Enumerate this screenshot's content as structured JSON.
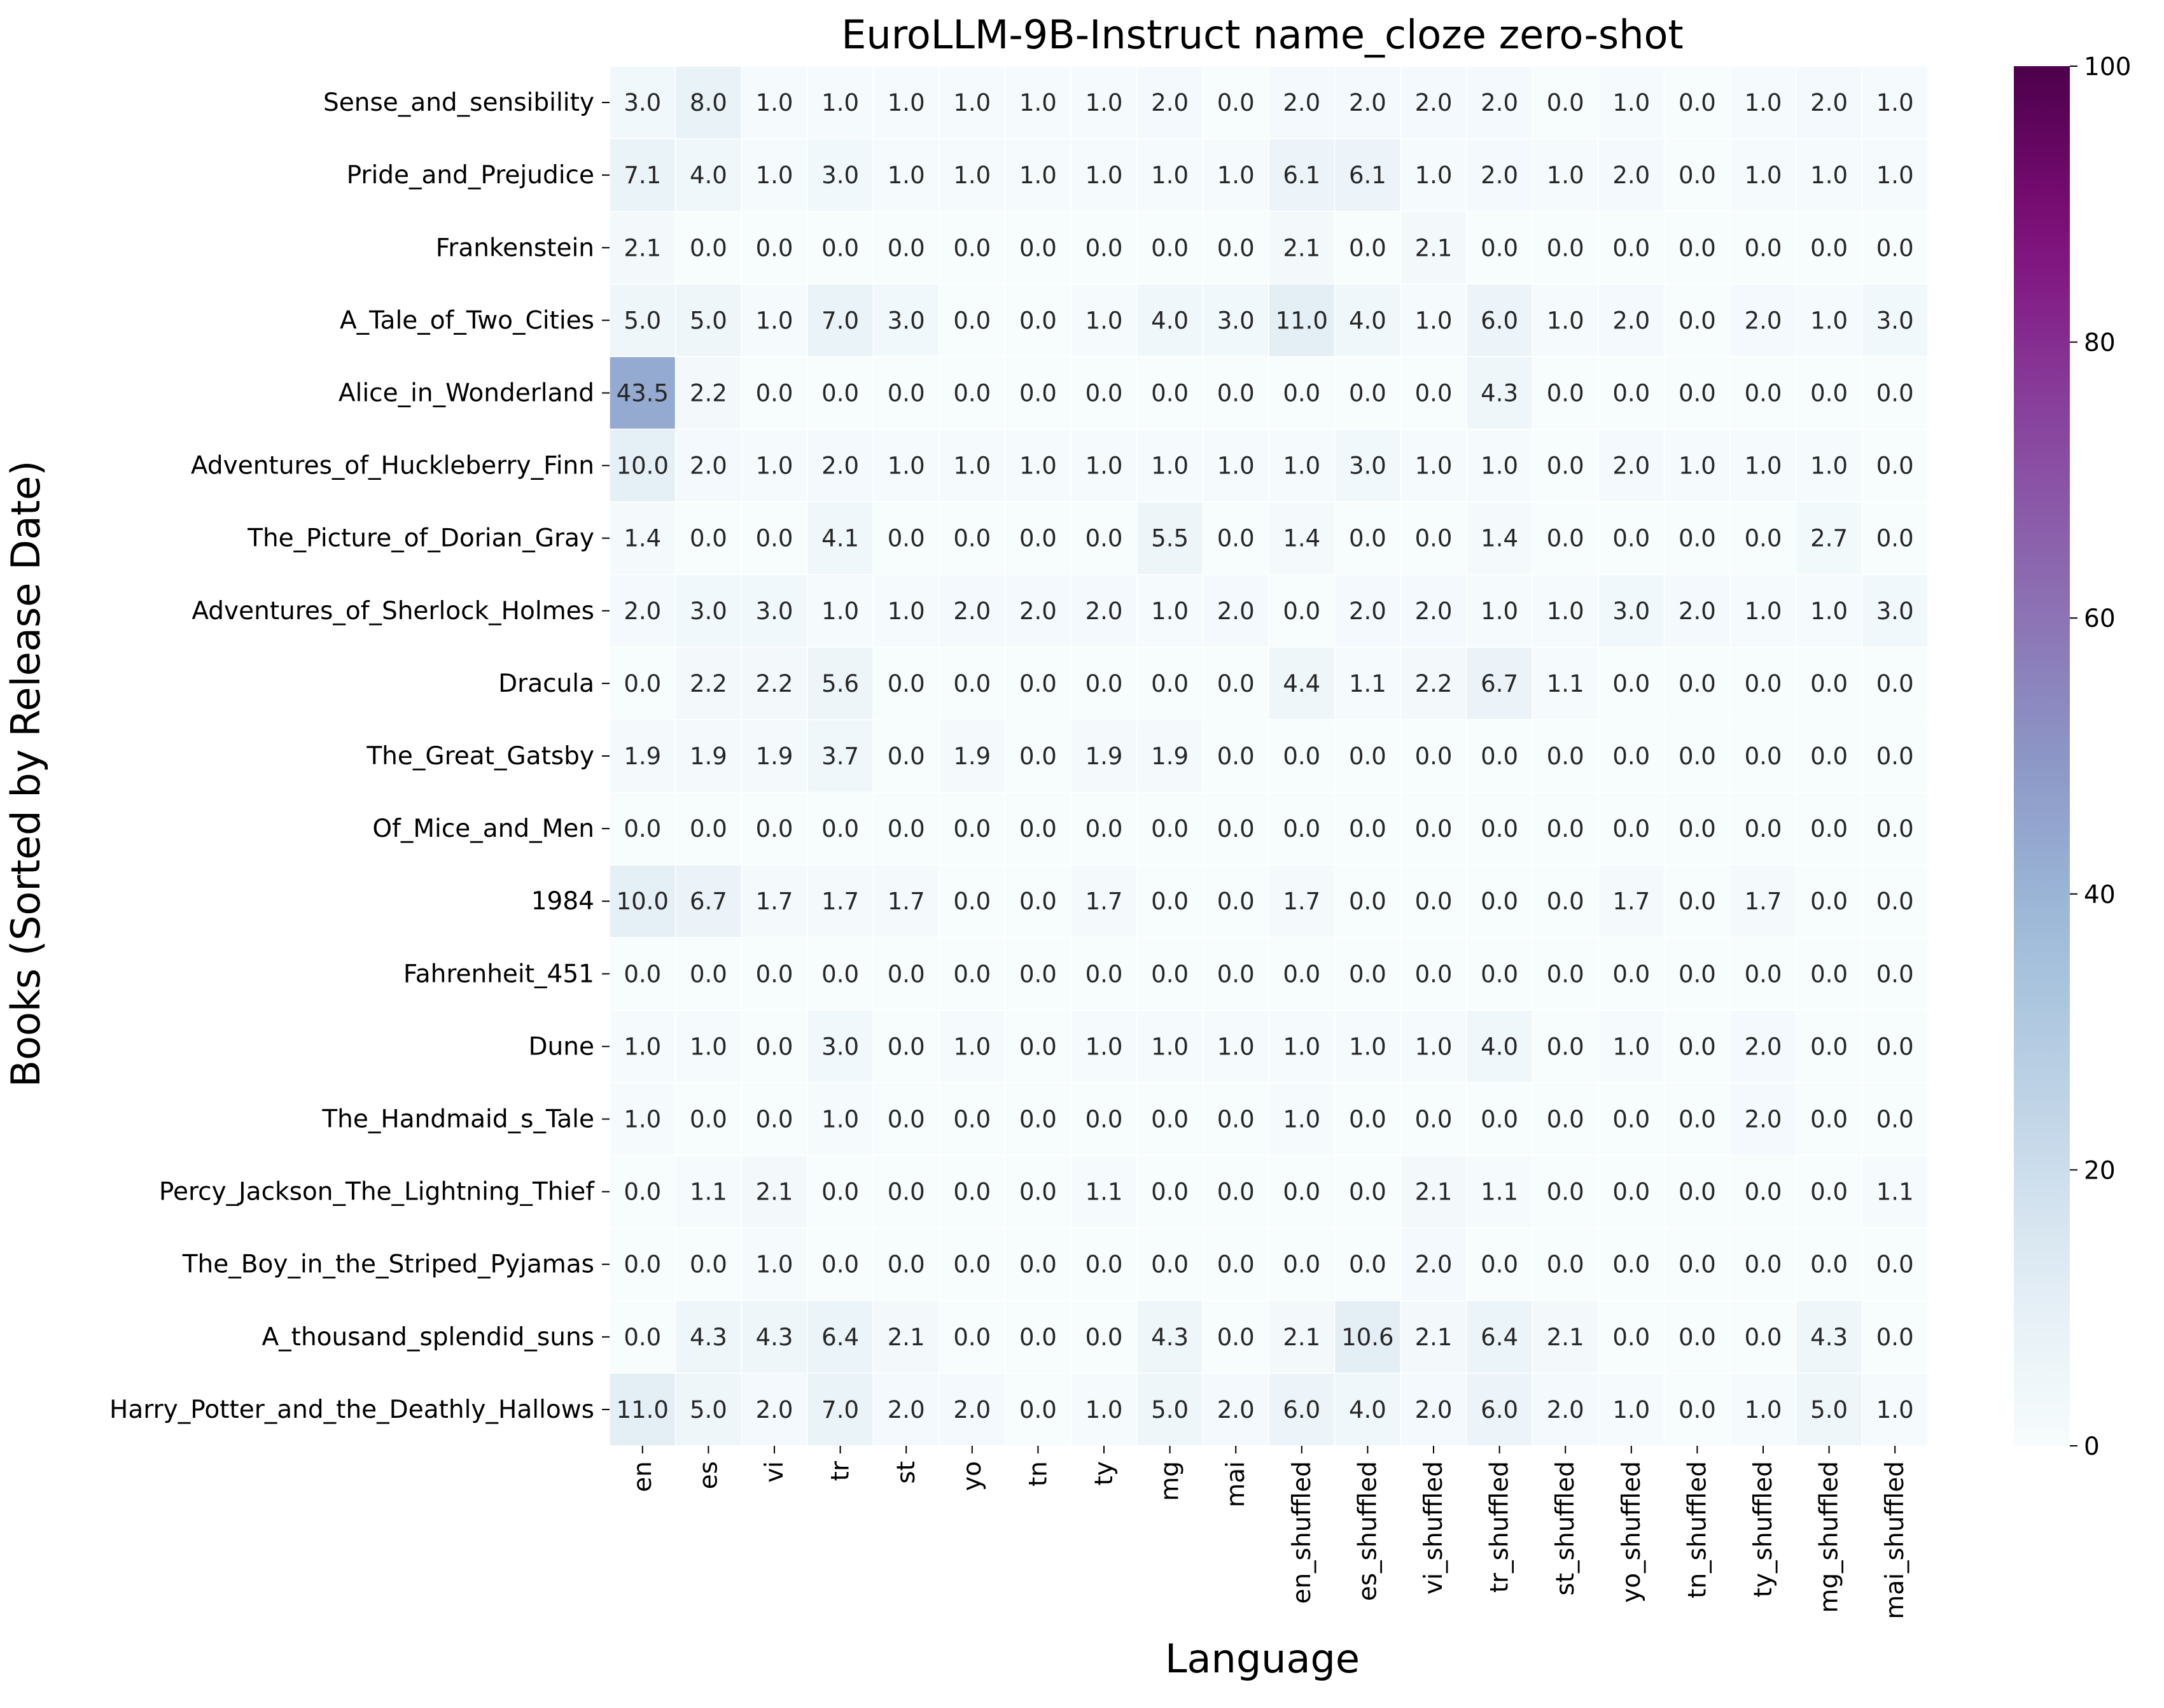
{
  "chart_data": {
    "type": "heatmap",
    "title": "EuroLLM-9B-Instruct name_cloze zero-shot",
    "xlabel": "Language",
    "ylabel": "Books (Sorted by Release Date)",
    "x_categories": [
      "en",
      "es",
      "vi",
      "tr",
      "st",
      "yo",
      "tn",
      "ty",
      "mg",
      "mai",
      "en_shuffled",
      "es_shuffled",
      "vi_shuffled",
      "tr_shuffled",
      "st_shuffled",
      "yo_shuffled",
      "tn_shuffled",
      "ty_shuffled",
      "mg_shuffled",
      "mai_shuffled"
    ],
    "y_categories": [
      "Sense_and_sensibility",
      "Pride_and_Prejudice",
      "Frankenstein",
      "A_Tale_of_Two_Cities",
      "Alice_in_Wonderland",
      "Adventures_of_Huckleberry_Finn",
      "The_Picture_of_Dorian_Gray",
      "Adventures_of_Sherlock_Holmes",
      "Dracula",
      "The_Great_Gatsby",
      "Of_Mice_and_Men",
      "1984",
      "Fahrenheit_451",
      "Dune",
      "The_Handmaid_s_Tale",
      "Percy_Jackson_The_Lightning_Thief",
      "The_Boy_in_the_Striped_Pyjamas",
      "A_thousand_splendid_suns",
      "Harry_Potter_and_the_Deathly_Hallows"
    ],
    "values": [
      [
        3.0,
        8.0,
        1.0,
        1.0,
        1.0,
        1.0,
        1.0,
        1.0,
        2.0,
        0.0,
        2.0,
        2.0,
        2.0,
        2.0,
        0.0,
        1.0,
        0.0,
        1.0,
        2.0,
        1.0
      ],
      [
        7.1,
        4.0,
        1.0,
        3.0,
        1.0,
        1.0,
        1.0,
        1.0,
        1.0,
        1.0,
        6.1,
        6.1,
        1.0,
        2.0,
        1.0,
        2.0,
        0.0,
        1.0,
        1.0,
        1.0
      ],
      [
        2.1,
        0.0,
        0.0,
        0.0,
        0.0,
        0.0,
        0.0,
        0.0,
        0.0,
        0.0,
        2.1,
        0.0,
        2.1,
        0.0,
        0.0,
        0.0,
        0.0,
        0.0,
        0.0,
        0.0
      ],
      [
        5.0,
        5.0,
        1.0,
        7.0,
        3.0,
        0.0,
        0.0,
        1.0,
        4.0,
        3.0,
        11.0,
        4.0,
        1.0,
        6.0,
        1.0,
        2.0,
        0.0,
        2.0,
        1.0,
        3.0
      ],
      [
        43.5,
        2.2,
        0.0,
        0.0,
        0.0,
        0.0,
        0.0,
        0.0,
        0.0,
        0.0,
        0.0,
        0.0,
        0.0,
        4.3,
        0.0,
        0.0,
        0.0,
        0.0,
        0.0,
        0.0
      ],
      [
        10.0,
        2.0,
        1.0,
        2.0,
        1.0,
        1.0,
        1.0,
        1.0,
        1.0,
        1.0,
        1.0,
        3.0,
        1.0,
        1.0,
        0.0,
        2.0,
        1.0,
        1.0,
        1.0,
        0.0
      ],
      [
        1.4,
        0.0,
        0.0,
        4.1,
        0.0,
        0.0,
        0.0,
        0.0,
        5.5,
        0.0,
        1.4,
        0.0,
        0.0,
        1.4,
        0.0,
        0.0,
        0.0,
        0.0,
        2.7,
        0.0
      ],
      [
        2.0,
        3.0,
        3.0,
        1.0,
        1.0,
        2.0,
        2.0,
        2.0,
        1.0,
        2.0,
        0.0,
        2.0,
        2.0,
        1.0,
        1.0,
        3.0,
        2.0,
        1.0,
        1.0,
        3.0
      ],
      [
        0.0,
        2.2,
        2.2,
        5.6,
        0.0,
        0.0,
        0.0,
        0.0,
        0.0,
        0.0,
        4.4,
        1.1,
        2.2,
        6.7,
        1.1,
        0.0,
        0.0,
        0.0,
        0.0,
        0.0
      ],
      [
        1.9,
        1.9,
        1.9,
        3.7,
        0.0,
        1.9,
        0.0,
        1.9,
        1.9,
        0.0,
        0.0,
        0.0,
        0.0,
        0.0,
        0.0,
        0.0,
        0.0,
        0.0,
        0.0,
        0.0
      ],
      [
        0.0,
        0.0,
        0.0,
        0.0,
        0.0,
        0.0,
        0.0,
        0.0,
        0.0,
        0.0,
        0.0,
        0.0,
        0.0,
        0.0,
        0.0,
        0.0,
        0.0,
        0.0,
        0.0,
        0.0
      ],
      [
        10.0,
        6.7,
        1.7,
        1.7,
        1.7,
        0.0,
        0.0,
        1.7,
        0.0,
        0.0,
        1.7,
        0.0,
        0.0,
        0.0,
        0.0,
        1.7,
        0.0,
        1.7,
        0.0,
        0.0
      ],
      [
        0.0,
        0.0,
        0.0,
        0.0,
        0.0,
        0.0,
        0.0,
        0.0,
        0.0,
        0.0,
        0.0,
        0.0,
        0.0,
        0.0,
        0.0,
        0.0,
        0.0,
        0.0,
        0.0,
        0.0
      ],
      [
        1.0,
        1.0,
        0.0,
        3.0,
        0.0,
        1.0,
        0.0,
        1.0,
        1.0,
        1.0,
        1.0,
        1.0,
        1.0,
        4.0,
        0.0,
        1.0,
        0.0,
        2.0,
        0.0,
        0.0
      ],
      [
        1.0,
        0.0,
        0.0,
        1.0,
        0.0,
        0.0,
        0.0,
        0.0,
        0.0,
        0.0,
        1.0,
        0.0,
        0.0,
        0.0,
        0.0,
        0.0,
        0.0,
        2.0,
        0.0,
        0.0
      ],
      [
        0.0,
        1.1,
        2.1,
        0.0,
        0.0,
        0.0,
        0.0,
        1.1,
        0.0,
        0.0,
        0.0,
        0.0,
        2.1,
        1.1,
        0.0,
        0.0,
        0.0,
        0.0,
        0.0,
        1.1
      ],
      [
        0.0,
        0.0,
        1.0,
        0.0,
        0.0,
        0.0,
        0.0,
        0.0,
        0.0,
        0.0,
        0.0,
        0.0,
        2.0,
        0.0,
        0.0,
        0.0,
        0.0,
        0.0,
        0.0,
        0.0
      ],
      [
        0.0,
        4.3,
        4.3,
        6.4,
        2.1,
        0.0,
        0.0,
        0.0,
        4.3,
        0.0,
        2.1,
        10.6,
        2.1,
        6.4,
        2.1,
        0.0,
        0.0,
        0.0,
        4.3,
        0.0
      ],
      [
        11.0,
        5.0,
        2.0,
        7.0,
        2.0,
        2.0,
        0.0,
        1.0,
        5.0,
        2.0,
        6.0,
        4.0,
        2.0,
        6.0,
        2.0,
        1.0,
        0.0,
        1.0,
        5.0,
        1.0
      ]
    ],
    "value_range": [
      0,
      100
    ],
    "colormap": "BuPu",
    "colorbar_ticks": [
      0,
      20,
      40,
      60,
      80,
      100
    ],
    "annotations": true,
    "annotation_format": "0.1f",
    "colors": {
      "light_text": "#ffffff",
      "dark_text": "#262626",
      "cell_border": "#ffffff"
    }
  }
}
